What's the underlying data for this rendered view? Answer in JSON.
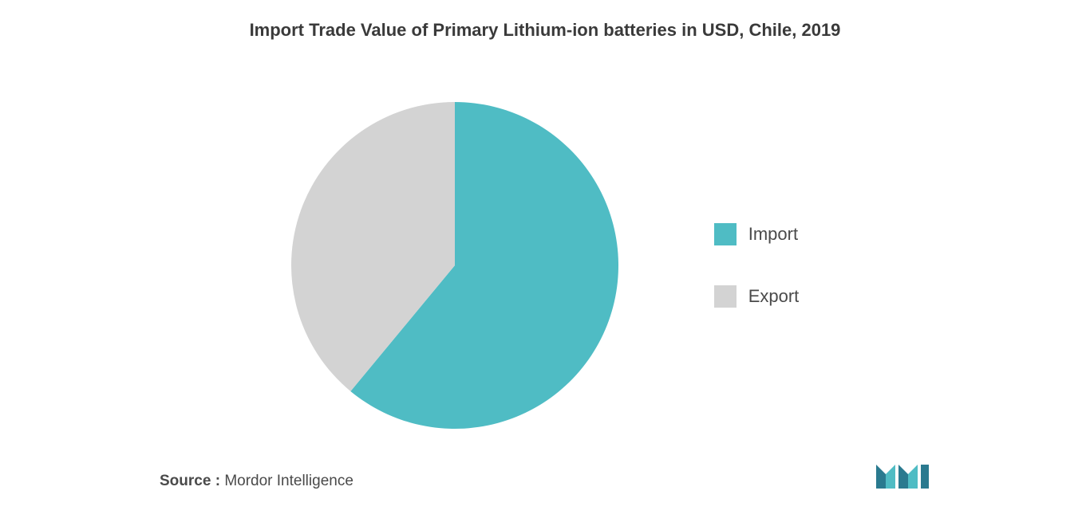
{
  "chart": {
    "type": "pie",
    "title": "Import Trade Value of Primary Lithium-ion batteries in USD, Chile, 2019",
    "title_fontsize": 22,
    "title_color": "#3a3a3a",
    "background_color": "#ffffff",
    "slices": [
      {
        "label": "Import",
        "value": 61,
        "color": "#4fbcc4"
      },
      {
        "label": "Export",
        "value": 39,
        "color": "#d3d3d3"
      }
    ],
    "start_angle": 0,
    "radius": 205,
    "label_fontsize": 22,
    "label_color": "#4a4a4a",
    "legend_position": "right",
    "legend_swatch_size": 28,
    "legend_gap": 50
  },
  "source": {
    "label": "Source :",
    "value": "Mordor Intelligence",
    "fontsize": 19,
    "color": "#4a4a4a"
  },
  "logo": {
    "name": "mordor-intelligence-logo",
    "primary_color": "#2a7a8f",
    "accent_color": "#4fbcc4"
  }
}
